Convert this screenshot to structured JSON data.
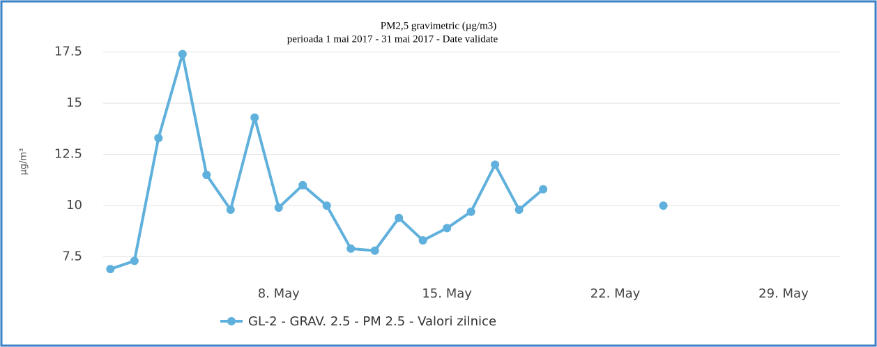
{
  "chart_data": {
    "type": "line",
    "title": "PM2,5 gravimetric (µg/m3)",
    "subtitle": "perioada 1 mai 2017 - 31 mai 2017 - Date validate",
    "y_label": "µg/m³",
    "x": [
      1,
      2,
      3,
      4,
      5,
      6,
      7,
      8,
      9,
      10,
      11,
      12,
      13,
      14,
      15,
      16,
      17,
      18,
      19,
      20,
      21,
      22,
      23,
      24
    ],
    "series": [
      {
        "name": "GL-2 - GRAV. 2.5 - PM 2.5 - Valori zilnice",
        "color": "#5fb0dc",
        "values": [
          6.9,
          7.3,
          13.3,
          17.4,
          11.5,
          9.8,
          14.3,
          9.9,
          11.0,
          10.0,
          7.9,
          7.8,
          9.4,
          8.3,
          8.9,
          9.7,
          12.0,
          9.8,
          10.8,
          null,
          null,
          null,
          null,
          10.0
        ]
      }
    ],
    "xlim": [
      0.7,
      31.35
    ],
    "xticks": [
      {
        "value": 8,
        "label": "8. May"
      },
      {
        "value": 15,
        "label": "15. May"
      },
      {
        "value": 22,
        "label": "22. May"
      },
      {
        "value": 29,
        "label": "29. May"
      }
    ],
    "ylim": [
      6.6,
      18
    ],
    "yticks": [
      7.5,
      10,
      12.5,
      15,
      17.5
    ],
    "grid": true,
    "legend": "bottom"
  }
}
